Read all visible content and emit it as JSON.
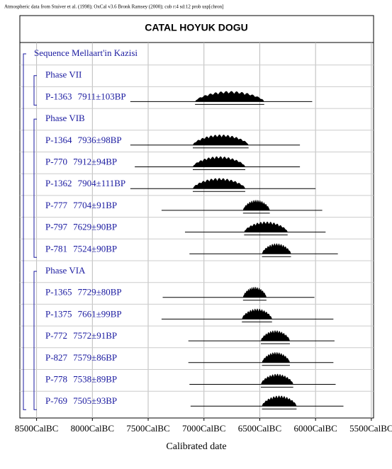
{
  "chart_data": {
    "type": "oxcal",
    "subtitle": "Atmospheric data from Stuiver et al. (1998); OxCal v3.6 Bronk Ramsey (2000); cub r:4 sd:12 prob usp[chron]",
    "title": "CATAL HOYUK DOGU",
    "x_label": "Calibrated date",
    "xlim": [
      8650,
      5480
    ],
    "xticks": [
      {
        "value": 8500,
        "label": "8500CalBC"
      },
      {
        "value": 8000,
        "label": "8000CalBC"
      },
      {
        "value": 7500,
        "label": "7500CalBC"
      },
      {
        "value": 7000,
        "label": "7000CalBC"
      },
      {
        "value": 6500,
        "label": "6500CalBC"
      },
      {
        "value": 6000,
        "label": "6000CalBC"
      },
      {
        "value": 5500,
        "label": "5500CalBC"
      }
    ],
    "rows": [
      {
        "label": "Sequence Mellaart'in Kazisi"
      },
      {
        "label": "Phase VII"
      },
      {
        "name": "P-1363",
        "date": "7911±103BP",
        "range": [
          7660,
          6030
        ],
        "peak": [
          7080,
          6460
        ]
      },
      {
        "label": "Phase VIB"
      },
      {
        "name": "P-1364",
        "date": "7936±98BP",
        "range": [
          7660,
          6140
        ],
        "peak": [
          7100,
          6600
        ]
      },
      {
        "name": "P-770",
        "date": "7912±94BP",
        "range": [
          7620,
          6140
        ],
        "peak": [
          7100,
          6630
        ]
      },
      {
        "name": "P-1362",
        "date": "7904±111BP",
        "range": [
          7660,
          6000
        ],
        "peak": [
          7100,
          6630
        ]
      },
      {
        "name": "P-777",
        "date": "7704±91BP",
        "range": [
          7380,
          5940
        ],
        "peak": [
          6650,
          6410
        ]
      },
      {
        "name": "P-797",
        "date": "7629±90BP",
        "range": [
          7170,
          5910
        ],
        "peak": [
          6640,
          6250
        ]
      },
      {
        "name": "P-781",
        "date": "7524±90BP",
        "range": [
          7130,
          5800
        ],
        "peak": [
          6480,
          6220
        ]
      },
      {
        "label": "Phase VIA"
      },
      {
        "name": "P-1365",
        "date": "7729±80BP",
        "range": [
          7370,
          6010
        ],
        "peak": [
          6650,
          6440
        ]
      },
      {
        "name": "P-1375",
        "date": "7661±99BP",
        "range": [
          7380,
          5840
        ],
        "peak": [
          6660,
          6390
        ]
      },
      {
        "name": "P-772",
        "date": "7572±91BP",
        "range": [
          7140,
          5830
        ],
        "peak": [
          6490,
          6230
        ]
      },
      {
        "name": "P-827",
        "date": "7579±86BP",
        "range": [
          7140,
          5840
        ],
        "peak": [
          6480,
          6230
        ]
      },
      {
        "name": "P-778",
        "date": "7538±89BP",
        "range": [
          7130,
          5820
        ],
        "peak": [
          6490,
          6200
        ]
      },
      {
        "name": "P-769",
        "date": "7505±93BP",
        "range": [
          7120,
          5750
        ],
        "peak": [
          6480,
          6170
        ]
      }
    ]
  }
}
